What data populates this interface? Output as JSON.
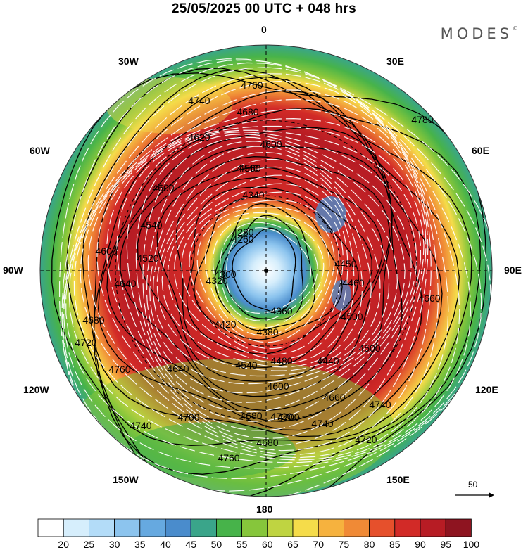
{
  "title": "25/05/2025  00 UTC  + 048 hrs",
  "brand": "MODES",
  "brand_mark": "©",
  "longitude_labels": [
    "0",
    "30E",
    "60E",
    "90E",
    "120E",
    "150E",
    "180",
    "150W",
    "120W",
    "90W",
    "60W",
    "30W"
  ],
  "contour_labels": [
    "4760",
    "4740",
    "4680",
    "4620",
    "4600",
    "4560",
    "4440",
    "4340",
    "4280",
    "4260",
    "4320",
    "4300",
    "4600",
    "4540",
    "4520",
    "4600",
    "4640",
    "4680",
    "4720",
    "4420",
    "4380",
    "4360",
    "4500",
    "4450",
    "4460",
    "4540",
    "4480",
    "4440",
    "4500",
    "4600",
    "4660",
    "4680",
    "4720",
    "4740",
    "4700",
    "4640",
    "4760",
    "4780",
    "4660",
    "4740",
    "4720",
    "4680",
    "4700",
    "4740",
    "4760"
  ],
  "vector_reference": "50",
  "colorbar": {
    "labels": [
      "20",
      "25",
      "30",
      "35",
      "40",
      "45",
      "50",
      "55",
      "60",
      "65",
      "70",
      "75",
      "80",
      "85",
      "90",
      "95",
      "100"
    ],
    "colors": [
      "#ffffff",
      "#d6eefc",
      "#b3dcf8",
      "#8cc4ee",
      "#66a9e0",
      "#4a8ccc",
      "#3aa58a",
      "#47b34a",
      "#86c63b",
      "#bfd441",
      "#f5dc4a",
      "#f6b23e",
      "#f08a36",
      "#e6502c",
      "#d22a27",
      "#b71c24",
      "#8e1420"
    ]
  }
}
